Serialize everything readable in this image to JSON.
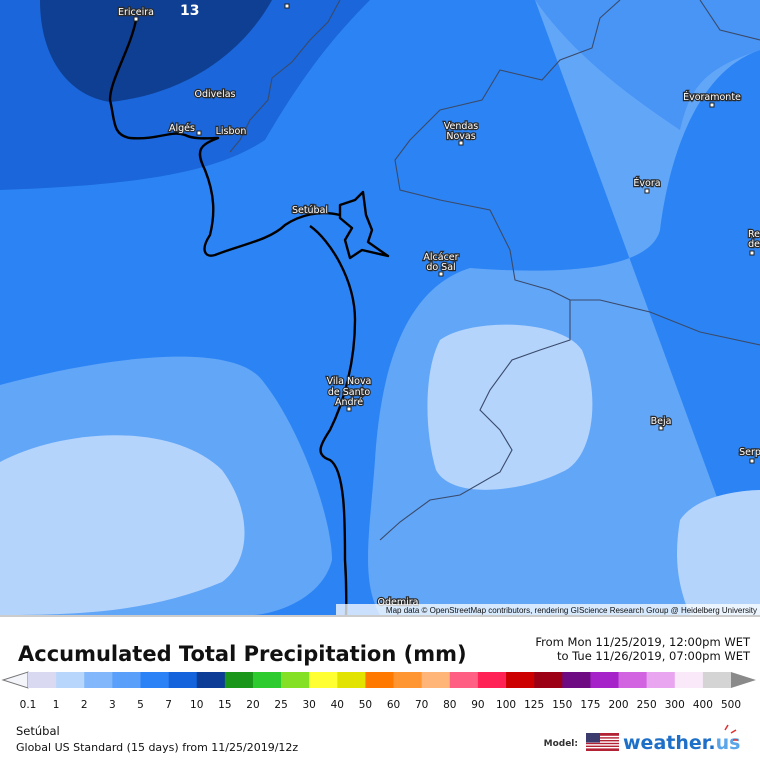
{
  "map": {
    "contour_label": 13,
    "places": [
      {
        "lines": [
          "Ericeira"
        ]
      },
      {
        "lines": [
          "Odivelas"
        ]
      },
      {
        "lines": [
          "Algés"
        ]
      },
      {
        "lines": [
          "Lisbon"
        ]
      },
      {
        "lines": [
          "Setúbal"
        ]
      },
      {
        "lines": [
          "Vendas",
          "Novas"
        ]
      },
      {
        "lines": [
          "Évoramonte"
        ]
      },
      {
        "lines": [
          "Évora"
        ]
      },
      {
        "lines": [
          "Re",
          "de"
        ]
      },
      {
        "lines": [
          "Alcácer",
          "do Sal"
        ]
      },
      {
        "lines": [
          "Vila Nova",
          "de Santo",
          "André"
        ]
      },
      {
        "lines": [
          "Beja"
        ]
      },
      {
        "lines": [
          "Serp"
        ]
      },
      {
        "lines": [
          "Odemira"
        ]
      }
    ],
    "attribution": "Map data © OpenStreetMap contributors, rendering GIScience Research Group @ Heidelberg University"
  },
  "legend": {
    "title": "Accumulated Total Precipitation (mm)",
    "from": "From Mon 11/25/2019, 12:00pm WET",
    "to": "to Tue 11/26/2019, 07:00pm WET",
    "scale": {
      "labels": [
        0.1,
        1,
        2,
        3,
        5,
        7,
        10,
        15,
        20,
        25,
        30,
        40,
        50,
        60,
        70,
        80,
        90,
        100,
        125,
        150,
        175,
        200,
        250,
        300,
        400,
        500
      ],
      "colors": [
        "#d9d9f2",
        "#b8d6fb",
        "#82b8fb",
        "#5aa0fa",
        "#2b82f6",
        "#1463dc",
        "#0c3c96",
        "#1a961a",
        "#2ecb2e",
        "#84e024",
        "#ffff33",
        "#e3e300",
        "#ff7800",
        "#ff9632",
        "#ffb478",
        "#ff5f82",
        "#ff2355",
        "#cd0000",
        "#9b0014",
        "#6e0a82",
        "#a523c8",
        "#d264e1",
        "#e9a5f0",
        "#f9e9f9",
        "#d4d4d4"
      ]
    },
    "location": "Setúbal",
    "model_run": "Global US Standard (15 days)  from  11/25/2019/12z",
    "model_label": "Model:",
    "brand": [
      "weather.",
      "us"
    ]
  }
}
